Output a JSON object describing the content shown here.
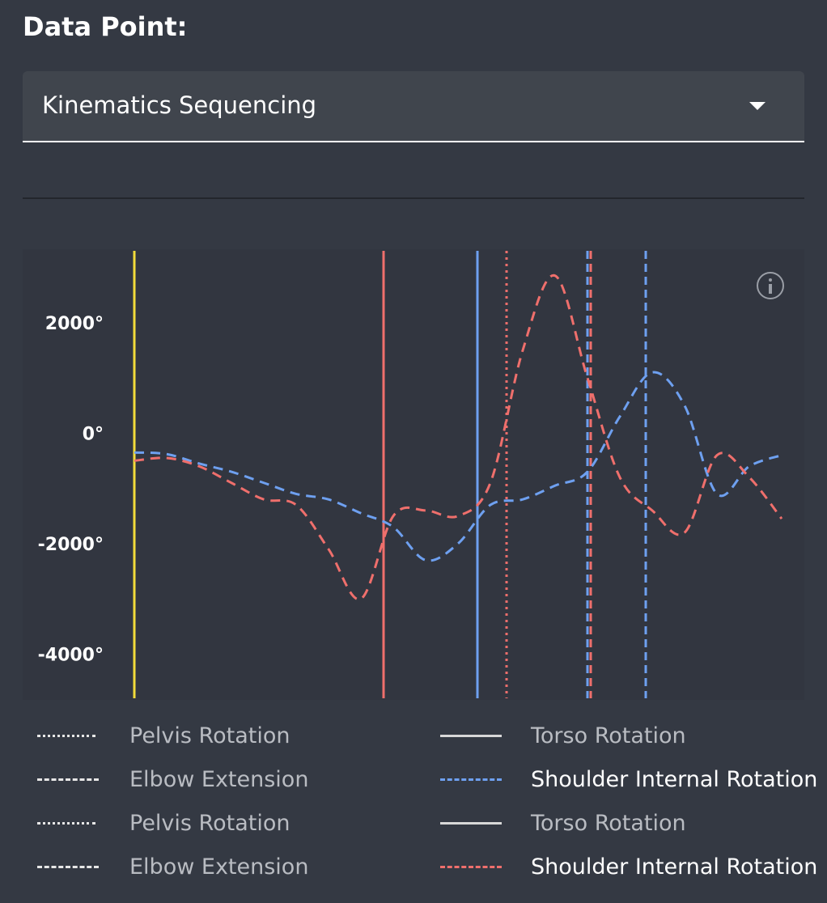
{
  "header": {
    "title": "Data Point:"
  },
  "selector": {
    "value": "Kinematics Sequencing"
  },
  "chart_data": {
    "type": "line",
    "y_tick_labels": [
      "2000°",
      "0°",
      "-2000°",
      "-4000°"
    ],
    "y_ticks": [
      2000,
      0,
      -2000,
      -4000
    ],
    "ylim": [
      -4800,
      3300
    ],
    "x": [
      0,
      5,
      10,
      15,
      20,
      25,
      30,
      35,
      40,
      45,
      50,
      55,
      60,
      65,
      70,
      75,
      80,
      85,
      90,
      95,
      100
    ],
    "series": [
      {
        "name": "Shoulder Internal Rotation",
        "color": "#6ea0f0",
        "style": "dashed",
        "values": [
          -350,
          -380,
          -550,
          -700,
          -900,
          -1100,
          -1200,
          -1450,
          -1700,
          -2300,
          -2000,
          -1300,
          -1200,
          -950,
          -700,
          300,
          1100,
          500,
          -1100,
          -600,
          -400
        ]
      },
      {
        "name": "Shoulder Internal Rotation",
        "color": "#ef6f6c",
        "style": "dashed",
        "values": [
          -500,
          -450,
          -600,
          -900,
          -1200,
          -1300,
          -2100,
          -3000,
          -1500,
          -1400,
          -1500,
          -900,
          1500,
          2850,
          1000,
          -800,
          -1400,
          -1800,
          -400,
          -800,
          -1550
        ]
      }
    ],
    "markers": [
      {
        "x": 0,
        "color": "#f3dc3a",
        "style": "solid"
      },
      {
        "x": 38.5,
        "color": "#ef6f6c",
        "style": "solid"
      },
      {
        "x": 53,
        "color": "#6ea0f0",
        "style": "solid"
      },
      {
        "x": 57.5,
        "color": "#ef6f6c",
        "style": "dotted"
      },
      {
        "x": 70,
        "color": "#6ea0f0",
        "style": "dashed"
      },
      {
        "x": 70.5,
        "color": "#ef6f6c",
        "style": "dashed"
      },
      {
        "x": 79,
        "color": "#6ea0f0",
        "style": "dashed"
      }
    ],
    "legend": [
      {
        "label": "Pelvis Rotation",
        "style": "dotted",
        "color": "#e6e6e6",
        "text_color": "#b9bcc2"
      },
      {
        "label": "Torso Rotation",
        "style": "solid",
        "color": "#d8d8d8",
        "text_color": "#b9bcc2"
      },
      {
        "label": "Elbow Extension",
        "style": "dashed",
        "color": "#e6e6e6",
        "text_color": "#b9bcc2"
      },
      {
        "label": "Shoulder Internal Rotation",
        "style": "dashed",
        "color": "#6ea0f0",
        "text_color": "#ffffff"
      },
      {
        "label": "Pelvis Rotation",
        "style": "dotted",
        "color": "#e6e6e6",
        "text_color": "#b9bcc2"
      },
      {
        "label": "Torso Rotation",
        "style": "solid",
        "color": "#d8d8d8",
        "text_color": "#b9bcc2"
      },
      {
        "label": "Elbow Extension",
        "style": "dashed",
        "color": "#e6e6e6",
        "text_color": "#b9bcc2"
      },
      {
        "label": "Shoulder Internal Rotation",
        "style": "dashed",
        "color": "#ef6f6c",
        "text_color": "#ffffff"
      }
    ]
  },
  "icons": {
    "info": "info-icon",
    "dropdown": "chevron-down-icon"
  }
}
